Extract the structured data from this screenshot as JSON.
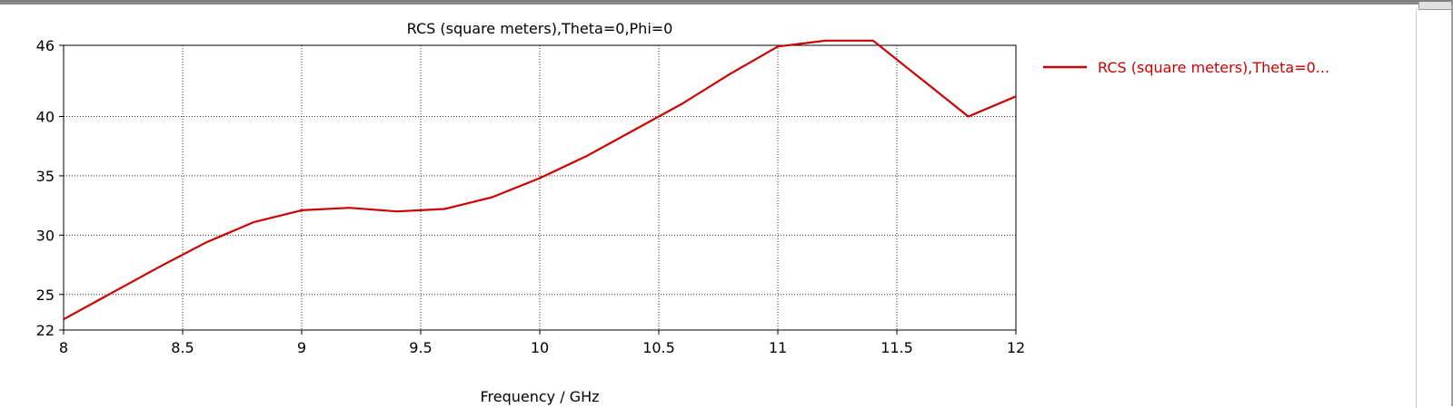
{
  "chart_data": {
    "type": "line",
    "title": "RCS (square meters),Theta=0,Phi=0",
    "xlabel": "Frequency / GHz",
    "ylabel": "",
    "xlim": [
      8,
      12
    ],
    "ylim": [
      22,
      46
    ],
    "x_ticks": [
      "8",
      "8.5",
      "9",
      "9.5",
      "10",
      "10.5",
      "11",
      "11.5",
      "12"
    ],
    "x_tick_values": [
      8,
      8.5,
      9,
      9.5,
      10,
      10.5,
      11,
      11.5,
      12
    ],
    "y_ticks": [
      "22",
      "25",
      "30",
      "35",
      "40",
      "46"
    ],
    "y_tick_values": [
      22,
      25,
      30,
      35,
      40,
      46
    ],
    "grid": true,
    "legend_position": "right",
    "series": [
      {
        "name": "RCS (square meters),Theta=0...",
        "color": "#cc0000",
        "x": [
          8.0,
          8.2,
          8.4,
          8.6,
          8.8,
          9.0,
          9.2,
          9.4,
          9.6,
          9.8,
          10.0,
          10.2,
          10.4,
          10.6,
          10.8,
          11.0,
          11.2,
          11.4,
          11.6,
          11.8,
          12.0
        ],
        "y": [
          22.9,
          25.1,
          27.3,
          29.4,
          31.1,
          32.1,
          32.3,
          32.0,
          32.2,
          33.2,
          34.8,
          36.7,
          38.9,
          41.1,
          43.6,
          45.9,
          47.3,
          46.6,
          43.2,
          40.0,
          41.7
        ]
      }
    ]
  }
}
